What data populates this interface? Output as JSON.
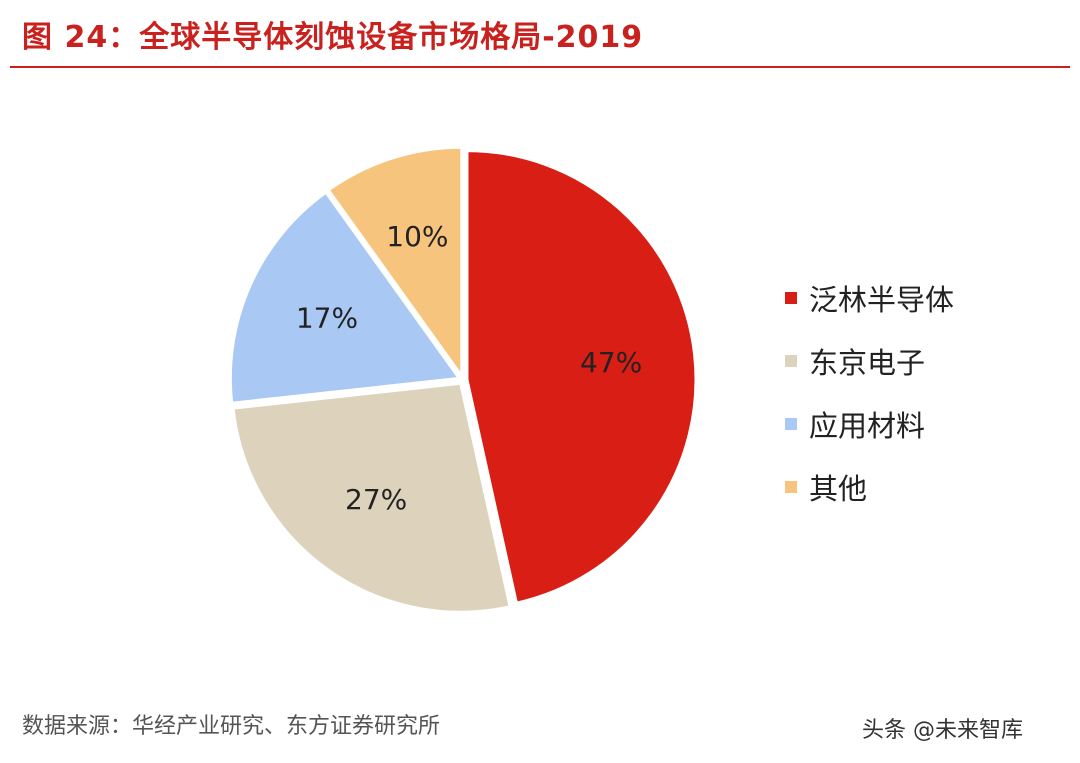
{
  "title": "图 24：全球半导体刻蚀设备市场格局-2019",
  "source": "数据来源：华经产业研究、东方证券研究所",
  "watermark": "头条 @未来智库",
  "chart_data": {
    "type": "pie",
    "title": "图 24：全球半导体刻蚀设备市场格局-2019",
    "legend_position": "right",
    "slices": [
      {
        "name": "泛林半导体",
        "value": 47,
        "label": "47%",
        "color": "#d81e15"
      },
      {
        "name": "东京电子",
        "value": 27,
        "label": "27%",
        "color": "#ddd3bd"
      },
      {
        "name": "应用材料",
        "value": 17,
        "label": "17%",
        "color": "#a9c8f4"
      },
      {
        "name": "其他",
        "value": 10,
        "label": "10%",
        "color": "#f6c47d"
      }
    ]
  }
}
